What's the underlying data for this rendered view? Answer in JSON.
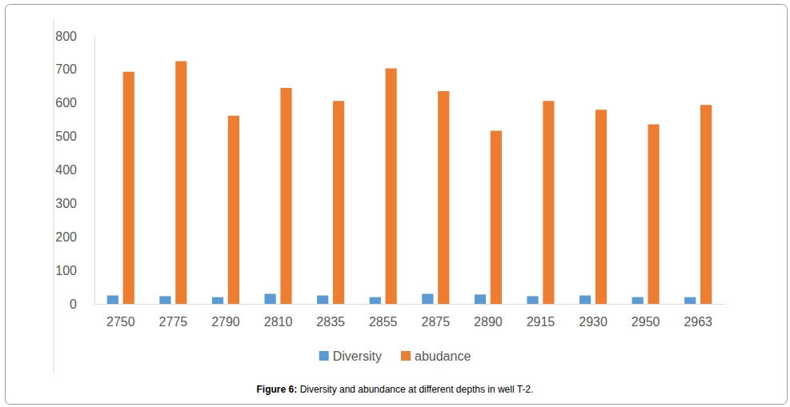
{
  "chart_data": {
    "type": "bar",
    "title": "Figure 6: Diversity and abundance at different depths in well T-2.",
    "categories": [
      "2750",
      "2775",
      "2790",
      "2810",
      "2835",
      "2855",
      "2875",
      "2890",
      "2915",
      "2930",
      "2950",
      "2963"
    ],
    "series": [
      {
        "name": "Diversity",
        "color": "#5b9bd5",
        "values": [
          25,
          23,
          20,
          30,
          25,
          20,
          30,
          28,
          23,
          25,
          20,
          20
        ]
      },
      {
        "name": "abudance",
        "color": "#ed7d31",
        "values": [
          693,
          725,
          562,
          645,
          606,
          703,
          635,
          517,
          606,
          580,
          536,
          594
        ]
      }
    ],
    "ylim": [
      0,
      800
    ],
    "yticks": [
      0,
      100,
      200,
      300,
      400,
      500,
      600,
      700,
      800
    ],
    "grid": false,
    "legend": "bottom"
  }
}
